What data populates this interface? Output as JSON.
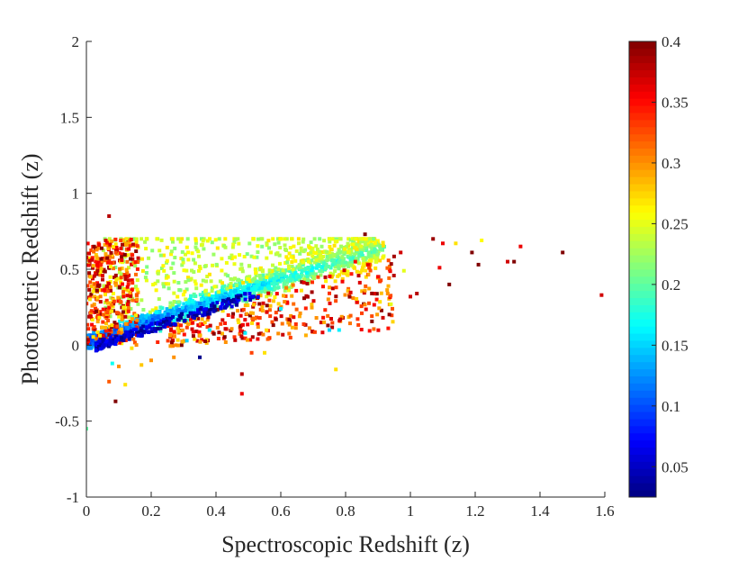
{
  "chart_data": {
    "type": "scatter",
    "xlabel": "Spectroscopic Redshift (z)",
    "ylabel": "Photometric Redshift (z)",
    "xlim": [
      0,
      1.6
    ],
    "ylim": [
      -1,
      2
    ],
    "xticks": [
      "0",
      "0.2",
      "0.4",
      "0.6",
      "0.8",
      "1",
      "1.2",
      "1.4",
      "1.6"
    ],
    "yticks": [
      "-1",
      "-0.5",
      "0",
      "0.5",
      "1",
      "1.5",
      "2"
    ],
    "colorbar": {
      "colormap": "jet",
      "range": [
        0.025,
        0.4
      ],
      "ticks": [
        "0.05",
        "0.1",
        "0.15",
        "0.2",
        "0.25",
        "0.3",
        "0.35",
        "0.4"
      ]
    },
    "outlier_points": [
      {
        "x": 0.07,
        "y": 0.85,
        "c": 0.38
      },
      {
        "x": 0.09,
        "y": -0.37,
        "c": 0.4
      },
      {
        "x": 0.0,
        "y": -0.55,
        "c": 0.2
      },
      {
        "x": 0.35,
        "y": -0.08,
        "c": 0.03
      },
      {
        "x": 0.48,
        "y": -0.32,
        "c": 0.36
      },
      {
        "x": 0.48,
        "y": -0.19,
        "c": 0.38
      },
      {
        "x": 0.77,
        "y": -0.16,
        "c": 0.27
      },
      {
        "x": 0.12,
        "y": -0.26,
        "c": 0.27
      },
      {
        "x": 0.07,
        "y": -0.24,
        "c": 0.32
      },
      {
        "x": 1.07,
        "y": 0.7,
        "c": 0.39
      },
      {
        "x": 1.1,
        "y": 0.67,
        "c": 0.36
      },
      {
        "x": 1.14,
        "y": 0.67,
        "c": 0.27
      },
      {
        "x": 1.19,
        "y": 0.61,
        "c": 0.4
      },
      {
        "x": 1.22,
        "y": 0.69,
        "c": 0.26
      },
      {
        "x": 1.21,
        "y": 0.53,
        "c": 0.4
      },
      {
        "x": 1.3,
        "y": 0.55,
        "c": 0.37
      },
      {
        "x": 1.32,
        "y": 0.55,
        "c": 0.4
      },
      {
        "x": 1.34,
        "y": 0.65,
        "c": 0.36
      },
      {
        "x": 1.47,
        "y": 0.61,
        "c": 0.4
      },
      {
        "x": 1.59,
        "y": 0.33,
        "c": 0.37
      },
      {
        "x": 1.12,
        "y": 0.4,
        "c": 0.4
      },
      {
        "x": 1.09,
        "y": 0.51,
        "c": 0.36
      },
      {
        "x": 1.02,
        "y": 0.34,
        "c": 0.38
      },
      {
        "x": 0.97,
        "y": 0.61,
        "c": 0.37
      },
      {
        "x": 0.9,
        "y": 0.45,
        "c": 0.35
      },
      {
        "x": 0.86,
        "y": 0.73,
        "c": 0.4
      },
      {
        "x": 0.93,
        "y": 0.34,
        "c": 0.3
      },
      {
        "x": 0.85,
        "y": 0.21,
        "c": 0.33
      },
      {
        "x": 0.71,
        "y": 0.18,
        "c": 0.3
      },
      {
        "x": 0.75,
        "y": 0.1,
        "c": 0.15
      },
      {
        "x": 0.78,
        "y": 0.1,
        "c": 0.16
      },
      {
        "x": 0.63,
        "y": 0.05,
        "c": 0.33
      },
      {
        "x": 0.56,
        "y": 0.04,
        "c": 0.32
      },
      {
        "x": 0.53,
        "y": 0.12,
        "c": 0.3
      },
      {
        "x": 0.47,
        "y": 0.15,
        "c": 0.27
      },
      {
        "x": 0.49,
        "y": 0.08,
        "c": 0.16
      },
      {
        "x": 0.43,
        "y": 0.02,
        "c": 0.3
      },
      {
        "x": 0.55,
        "y": -0.05,
        "c": 0.27
      },
      {
        "x": 0.51,
        "y": -0.05,
        "c": 0.33
      },
      {
        "x": 0.31,
        "y": 0.03,
        "c": 0.15
      },
      {
        "x": 0.26,
        "y": 0.07,
        "c": 0.3
      },
      {
        "x": 0.22,
        "y": 0.02,
        "c": 0.34
      },
      {
        "x": 0.14,
        "y": -0.02,
        "c": 0.27
      },
      {
        "x": 0.17,
        "y": -0.13,
        "c": 0.28
      },
      {
        "x": 0.1,
        "y": -0.14,
        "c": 0.3
      },
      {
        "x": 0.08,
        "y": -0.12,
        "c": 0.17
      },
      {
        "x": 0.38,
        "y": 0.1,
        "c": 0.16
      },
      {
        "x": 0.6,
        "y": 0.24,
        "c": 0.16
      },
      {
        "x": 0.66,
        "y": 0.21,
        "c": 0.3
      },
      {
        "x": 0.94,
        "y": 0.27,
        "c": 0.25
      },
      {
        "x": 0.83,
        "y": 0.55,
        "c": 0.35
      },
      {
        "x": 0.98,
        "y": 0.49,
        "c": 0.25
      },
      {
        "x": 1.0,
        "y": 0.32,
        "c": 0.37
      },
      {
        "x": 0.27,
        "y": -0.08,
        "c": 0.3
      },
      {
        "x": 0.2,
        "y": -0.1,
        "c": 0.3
      }
    ]
  }
}
